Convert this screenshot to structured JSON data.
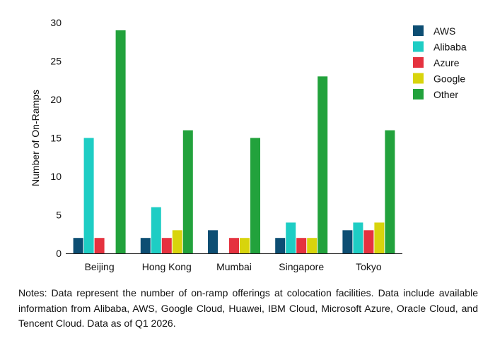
{
  "chart_data": {
    "type": "bar",
    "categories": [
      "Beijing",
      "Hong Kong",
      "Mumbai",
      "Singapore",
      "Tokyo"
    ],
    "series": [
      {
        "name": "AWS",
        "color": "#0d4e73",
        "values": [
          2,
          2,
          3,
          2,
          3
        ]
      },
      {
        "name": "Alibaba",
        "color": "#1ecdc4",
        "values": [
          15,
          6,
          0,
          4,
          4
        ]
      },
      {
        "name": "Azure",
        "color": "#e5323f",
        "values": [
          2,
          2,
          2,
          2,
          3
        ]
      },
      {
        "name": "Google",
        "color": "#d8d40c",
        "values": [
          0,
          3,
          2,
          2,
          4
        ]
      },
      {
        "name": "Other",
        "color": "#22a23c",
        "values": [
          29,
          16,
          15,
          23,
          16
        ]
      }
    ],
    "ylabel": "Number of On-Ramps",
    "ylim": [
      0,
      30
    ],
    "yticks": [
      0,
      5,
      10,
      15,
      20,
      25,
      30
    ],
    "grid": false,
    "legend_position": "top-right"
  },
  "notes": "Notes: Data represent the number of on-ramp offerings at colocation facilities. Data include available information from Alibaba, AWS, Google Cloud, Huawei, IBM Cloud, Microsoft Azure, Oracle Cloud, and Tencent Cloud. Data as of Q1 2026."
}
